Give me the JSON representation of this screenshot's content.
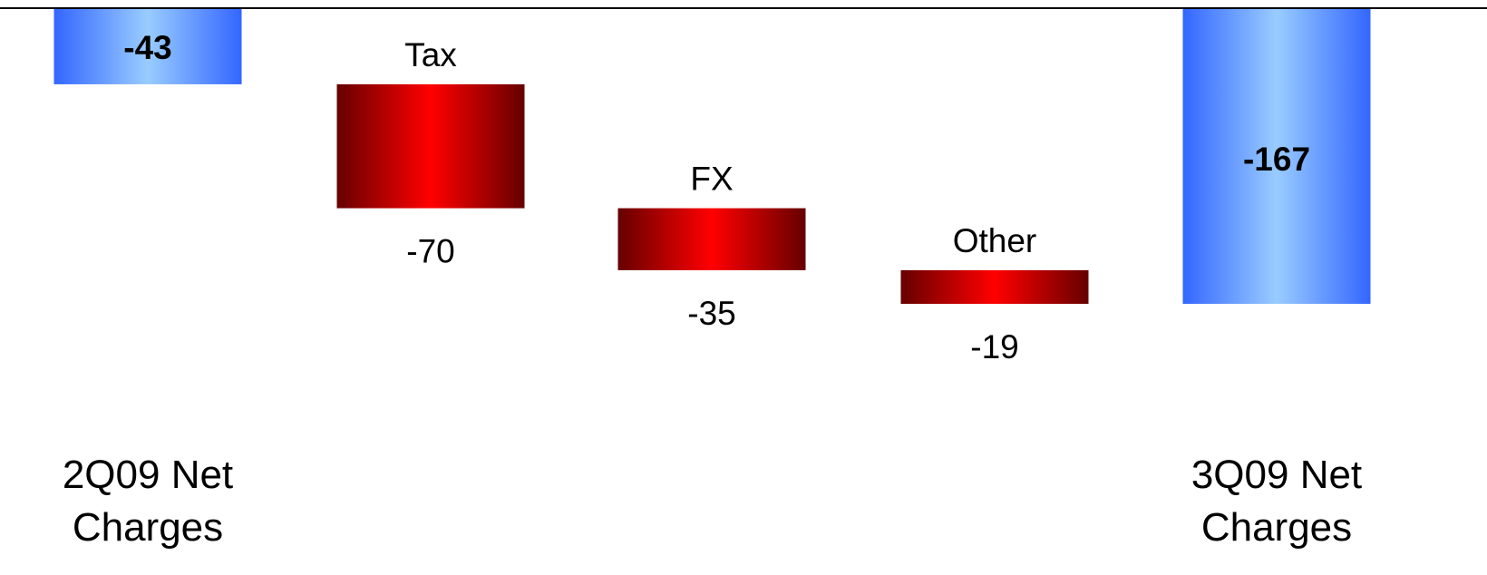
{
  "chart_data": {
    "type": "bar",
    "subtype": "waterfall",
    "categories": [
      "2Q09 Net Charges",
      "Tax",
      "FX",
      "Other",
      "3Q09 Net Charges"
    ],
    "category_labels": [
      {
        "lines": [
          "2Q09 Net",
          "Charges"
        ]
      },
      {
        "lines": [
          "Tax"
        ]
      },
      {
        "lines": [
          "FX"
        ]
      },
      {
        "lines": [
          "Other"
        ]
      },
      {
        "lines": [
          "3Q09 Net",
          "Charges"
        ]
      }
    ],
    "values": [
      -43,
      -70,
      -35,
      -19,
      -167
    ],
    "value_labels": [
      "-43",
      "-70",
      "-35",
      "-19",
      "-167"
    ],
    "bar_kinds": [
      "total",
      "change",
      "change",
      "change",
      "total"
    ],
    "ylim": [
      -240,
      0
    ],
    "grid": false,
    "colors": {
      "total_edge": "#3366ff",
      "total_center": "#99ccff",
      "change_edge": "#660000",
      "change_center": "#ff0000",
      "baseline": "#000000",
      "text": "#000000"
    }
  }
}
